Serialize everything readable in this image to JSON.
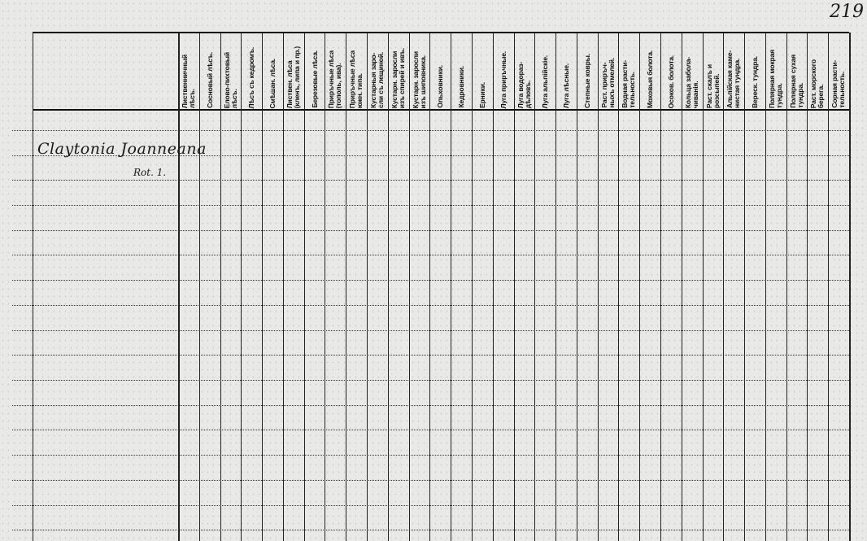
{
  "page_number": "219",
  "entry": {
    "species": "Claytonia Joanneana",
    "note": "Rot. 1."
  },
  "columns": [
    "Лиственничный\nлѣсъ.",
    "Сосновый лѣсъ.",
    "Елово-пихтовый\nлѣсъ.",
    "Лѣсъ съ кедромъ.",
    "Смѣшан. лѣса.",
    "Листвен. лѣса\n(кленъ, липа и пр.)",
    "Березовые лѣса.",
    "Приръчные лѣса\n(тополь, ива).",
    "Приръчные лѣса\nюжн. типа.",
    "Кустарныя заро-\nсли съ лещиной.",
    "Кустарн. заросли\nизъ спирей и ивъ.",
    "Кустарн. заросли\nизъ шиповника.",
    "Ольховники.",
    "Кедровники.",
    "Ерники.",
    "Луга приръчные.",
    "Луга водораз-\nдѣловъ.",
    "Луга альпійскіе.",
    "Луга лѣсные.",
    "Степные ковры.",
    "Раст. приръч-\nныхъ отмелей.",
    "Водная расти-\nтельность.",
    "Моховыя болота.",
    "Осоков. болота.",
    "Кольца заболa-\nчиванія.",
    "Раст. скалъ и\nрозсыпей.",
    "Альпійская каме-\nнистая тундра.",
    "Вереск. тундра.",
    "Полярная мокрая\nтундра.",
    "Полярная сухая\nтундра.",
    "Раст. морского\nберега.",
    "Сорная расти-\nтельность."
  ]
}
